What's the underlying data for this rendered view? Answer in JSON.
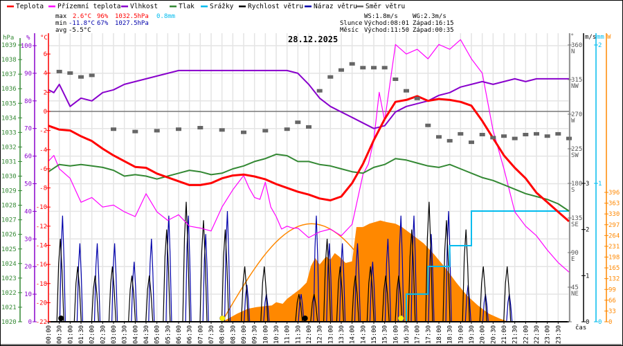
{
  "colors": {
    "teplota": "#ff0000",
    "prizemni": "#ff00ff",
    "vlhkost": "#8800cc",
    "tlak": "#338833",
    "srazky": "#00bbee",
    "rychlost": "#000000",
    "naraz": "#0000aa",
    "smer": "#666666",
    "slunce": "#ff8800",
    "grid": "#e4e4e4"
  },
  "legend": [
    {
      "label": "Teplota",
      "color": "#ff0000"
    },
    {
      "label": "Přízemní teplota",
      "color": "#ff00ff"
    },
    {
      "label": "Vlhkost",
      "color": "#8800cc"
    },
    {
      "label": "Tlak",
      "color": "#338833"
    },
    {
      "label": "Srážky",
      "color": "#00bbee"
    },
    {
      "label": "Rychlost větru",
      "color": "#000000"
    },
    {
      "label": "Náraz větru",
      "color": "#0000aa"
    },
    {
      "label": "Směr větru",
      "color": "#666666"
    }
  ],
  "stats": {
    "max_label": "max",
    "max_temp": "2.6°C",
    "max_hum": "96%",
    "max_press": "1032.5hPa",
    "max_rain": "0.8mm",
    "min_label": "min",
    "min_temp": "-11.8°C",
    "min_hum": "67%",
    "min_press": "1027.5hPa",
    "avg_label": "avg",
    "avg_temp": "-5.5°C"
  },
  "wind": {
    "ws": "WS:1.8m/s",
    "wg": "WG:2.3m/s"
  },
  "sun": {
    "label": "Slunce",
    "rise": "Východ:08:01",
    "set": "Západ:16:15"
  },
  "moon": {
    "label": "Měsíc",
    "rise": "Východ:11:50",
    "set": "Západ:00:35"
  },
  "date": "28.12.2025",
  "axes": {
    "hpa_unit": "hPa",
    "hpa_ticks": [
      "1039",
      "1038",
      "1037",
      "1036",
      "1035",
      "1034",
      "1033",
      "1032",
      "1031",
      "1030",
      "1029",
      "1028",
      "1027",
      "1026",
      "1025",
      "1024",
      "1023",
      "1022",
      "1021",
      "1020"
    ],
    "pct_unit": "%",
    "pct_ticks": [
      "100",
      "90",
      "80",
      "70",
      "60",
      "50",
      "40",
      "30",
      "20",
      "10",
      "0"
    ],
    "temp_unit": "°C",
    "temp_ticks": [
      "6",
      "4",
      "2",
      "0",
      "-2",
      "-4",
      "-6",
      "-8",
      "-10",
      "-12",
      "-14",
      "-16",
      "-18",
      "-20",
      "-22"
    ],
    "deg_unit": "°",
    "deg_ticks": [
      {
        "v": "360",
        "d": "N"
      },
      {
        "v": "315",
        "d": "NW"
      },
      {
        "v": "270",
        "d": "W"
      },
      {
        "v": "225",
        "d": "SW"
      },
      {
        "v": "180",
        "d": "S"
      },
      {
        "v": "135",
        "d": "SE"
      },
      {
        "v": "90",
        "d": "E"
      },
      {
        "v": "45",
        "d": "NE"
      },
      {
        "v": "0",
        "d": ""
      }
    ],
    "ms_unit": "m/s",
    "ms_ticks": [
      "3",
      "2",
      "1",
      "0"
    ],
    "mm_unit": "mm",
    "mm_ticks": [
      "2",
      "1",
      "0"
    ],
    "w_unit": "W",
    "w_ticks": [
      "396",
      "363",
      "330",
      "297",
      "264",
      "231",
      "198",
      "165",
      "132",
      "99",
      "66",
      "33",
      "0"
    ],
    "time_label": "čas",
    "time_ticks": [
      "00:00",
      "00:30",
      "01:00",
      "01:30",
      "02:00",
      "02:30",
      "03:00",
      "03:30",
      "04:00",
      "04:30",
      "05:00",
      "05:30",
      "06:00",
      "06:30",
      "07:00",
      "07:30",
      "08:00",
      "08:30",
      "09:00",
      "09:30",
      "10:00",
      "10:30",
      "11:00",
      "11:30",
      "12:00",
      "12:30",
      "13:00",
      "13:30",
      "14:00",
      "14:30",
      "15:00",
      "15:30",
      "16:00",
      "16:30",
      "17:00",
      "17:30",
      "18:00",
      "18:30",
      "19:00",
      "19:30",
      "20:00",
      "20:30",
      "21:00",
      "21:30",
      "22:00",
      "22:30",
      "23:00",
      "23:30"
    ]
  },
  "chart_data": {
    "type": "line",
    "title": "28.12.2025",
    "xlabel": "čas",
    "xlim_hours": [
      0,
      24
    ],
    "series": [
      {
        "name": "Teplota",
        "unit": "°C",
        "x": [
          0,
          0.5,
          1,
          1.5,
          2,
          2.5,
          3,
          3.5,
          4,
          4.5,
          5,
          5.5,
          6,
          6.5,
          7,
          7.5,
          8,
          8.5,
          9,
          9.5,
          10,
          10.5,
          11,
          11.5,
          12,
          12.5,
          13,
          13.5,
          14,
          14.5,
          15,
          15.5,
          16,
          16.5,
          17,
          17.5,
          18,
          18.5,
          19,
          19.5,
          20,
          20.5,
          21,
          21.5,
          22,
          22.5,
          23,
          23.5,
          24
        ],
        "values": [
          -1.5,
          -1.9,
          -2.0,
          -2.6,
          -3.1,
          -3.9,
          -4.6,
          -5.2,
          -5.8,
          -5.9,
          -6.5,
          -6.9,
          -7.3,
          -7.7,
          -7.7,
          -7.5,
          -7.0,
          -6.7,
          -6.6,
          -6.8,
          -7.1,
          -7.6,
          -8.0,
          -8.4,
          -8.7,
          -9.1,
          -9.3,
          -8.9,
          -7.5,
          -5.5,
          -3.0,
          -0.8,
          1.0,
          1.2,
          1.6,
          1.1,
          1.3,
          1.2,
          1.0,
          0.6,
          -1.0,
          -2.8,
          -4.6,
          -5.9,
          -7.0,
          -8.5,
          -9.5,
          -10.5,
          -11.5
        ]
      },
      {
        "name": "Přízemní teplota",
        "unit": "°C",
        "x": [
          0,
          0.25,
          0.5,
          1,
          1.5,
          2,
          2.5,
          3,
          3.5,
          4,
          4.5,
          5,
          5.5,
          6,
          6.5,
          7,
          7.5,
          8,
          8.5,
          9,
          9.25,
          9.5,
          9.75,
          10,
          10.25,
          10.5,
          10.75,
          11,
          11.25,
          11.5,
          12,
          12.5,
          13,
          13.5,
          14,
          14.5,
          14.75,
          15,
          15.25,
          15.5,
          16,
          16.5,
          17,
          17.5,
          18,
          18.5,
          19,
          19.5,
          20,
          20.5,
          21,
          21.5,
          22,
          22.5,
          23,
          23.5,
          24
        ],
        "values": [
          -5.2,
          -4.6,
          -6.0,
          -7.0,
          -9.5,
          -9.0,
          -10.0,
          -9.8,
          -10.5,
          -11.0,
          -8.6,
          -10.5,
          -11.4,
          -10.8,
          -12.0,
          -12.2,
          -12.5,
          -10.0,
          -8.2,
          -6.7,
          -8.0,
          -9.0,
          -9.2,
          -7.4,
          -10.0,
          -11.0,
          -12.3,
          -12.0,
          -12.2,
          -12.2,
          -13.2,
          -12.6,
          -12.3,
          -13.0,
          -11.8,
          -6.6,
          -5.5,
          -3.0,
          2.0,
          -1.0,
          7.0,
          6.0,
          6.5,
          5.5,
          7.0,
          6.5,
          7.5,
          5.5,
          4.0,
          -2.0,
          -6.0,
          -10.5,
          -12.0,
          -13.0,
          -14.5,
          -15.8,
          -16.8
        ]
      },
      {
        "name": "Vlhkost",
        "unit": "%",
        "x": [
          0,
          0.25,
          0.5,
          0.75,
          1,
          1.5,
          2,
          2.5,
          3,
          3.5,
          4,
          4.5,
          5,
          6,
          7,
          8,
          9,
          10,
          11,
          11.5,
          12,
          12.5,
          13,
          13.5,
          14,
          14.5,
          15,
          15.5,
          16,
          16.5,
          17,
          17.5,
          18,
          18.5,
          19,
          19.5,
          20,
          20.5,
          21,
          21.5,
          22,
          22.5,
          23,
          23.5,
          24
        ],
        "values": [
          84,
          83,
          86,
          82,
          78,
          81,
          80,
          83,
          84,
          86,
          87,
          88,
          89,
          91,
          91,
          91,
          91,
          91,
          91,
          90,
          86,
          81,
          78,
          76,
          74,
          72,
          70,
          71,
          76,
          78,
          79,
          80,
          82,
          83,
          85,
          86,
          87,
          86,
          87,
          88,
          87,
          88,
          88,
          88,
          88
        ]
      },
      {
        "name": "Tlak",
        "unit": "hPa",
        "x": [
          0,
          0.5,
          1,
          1.5,
          2,
          2.5,
          3,
          3.5,
          4,
          4.5,
          5,
          5.5,
          6,
          6.5,
          7,
          7.5,
          8,
          8.5,
          9,
          9.5,
          10,
          10.5,
          11,
          11.5,
          12,
          12.5,
          13,
          13.5,
          14,
          14.5,
          15,
          15.5,
          16,
          16.5,
          17,
          17.5,
          18,
          18.5,
          19,
          19.5,
          20,
          20.5,
          21,
          21.5,
          22,
          22.5,
          23,
          23.5,
          24
        ],
        "values": [
          1030.3,
          1030.8,
          1030.7,
          1030.8,
          1030.7,
          1030.6,
          1030.4,
          1030.0,
          1030.1,
          1030.0,
          1029.8,
          1030.0,
          1030.2,
          1030.4,
          1030.3,
          1030.1,
          1030.2,
          1030.5,
          1030.7,
          1031.0,
          1031.2,
          1031.5,
          1031.4,
          1031.0,
          1031.0,
          1030.8,
          1030.7,
          1030.5,
          1030.3,
          1030.2,
          1030.6,
          1030.8,
          1031.2,
          1031.1,
          1030.9,
          1030.7,
          1030.6,
          1030.8,
          1030.5,
          1030.2,
          1029.9,
          1029.7,
          1029.4,
          1029.1,
          1028.8,
          1028.6,
          1028.4,
          1028.1,
          1027.6
        ]
      },
      {
        "name": "Srážky",
        "unit": "mm",
        "x": [
          0,
          16,
          16.5,
          17,
          17.5,
          18,
          18.5,
          19,
          19.5,
          24
        ],
        "values": [
          0,
          0,
          0.2,
          0.2,
          0.4,
          0.4,
          0.55,
          0.55,
          0.8,
          0.8
        ]
      },
      {
        "name": "Směr větru",
        "unit": "°",
        "x": [
          0.5,
          1,
          1.5,
          2,
          3,
          4,
          5,
          6,
          7,
          8,
          9,
          10,
          11,
          11.5,
          12,
          12.5,
          13,
          13.5,
          14,
          14.5,
          15,
          15.5,
          16,
          16.5,
          17,
          17.5,
          18,
          18.5,
          19,
          19.5,
          20,
          20.5,
          21,
          21.5,
          22,
          22.5,
          23,
          23.5,
          24
        ],
        "values": [
          325,
          323,
          318,
          320,
          250,
          247,
          248,
          250,
          252,
          249,
          246,
          248,
          250,
          259,
          253,
          300,
          318,
          327,
          335,
          330,
          330,
          330,
          315,
          300,
          290,
          255,
          240,
          235,
          244,
          233,
          243,
          239,
          241,
          238,
          243,
          244,
          241,
          244,
          238
        ]
      }
    ],
    "wind_series": [
      {
        "name": "Rychlost větru",
        "unit": "m/s",
        "peak_values": [
          1.8,
          1.2,
          1.0,
          1.2,
          1.0,
          1.0,
          2.0,
          2.6,
          2.2,
          2.0,
          1.2,
          1.2,
          0.6,
          0.6
        ]
      },
      {
        "name": "Náraz větru",
        "unit": "m/s",
        "peak_values": [
          2.3,
          1.7,
          1.7,
          1.7,
          1.3,
          1.8,
          2.3,
          2.3,
          1.9,
          2.4,
          0.8,
          0.6,
          0.6
        ]
      }
    ],
    "solar": {
      "name": "Sluneční záření",
      "unit": "W",
      "peak": 300,
      "sunrise": "08:01",
      "sunset": "16:15"
    }
  }
}
